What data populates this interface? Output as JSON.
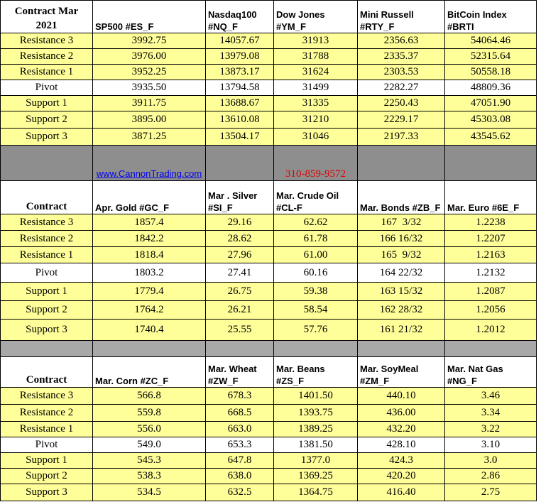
{
  "sections": [
    {
      "header": [
        "Contract  Mar\n2021",
        "SP500 #ES_F",
        "Nasdaq100\n#NQ_F",
        "Dow Jones\n#YM_F",
        "Mini Russell\n#RTY_F",
        "BitCoin Index\n#BRTI"
      ],
      "rows": [
        [
          "Resistance 3",
          "3992.75",
          "14057.67",
          "31913",
          "2356.63",
          "54064.46"
        ],
        [
          "Resistance 2",
          "3976.00",
          "13979.08",
          "31788",
          "2335.37",
          "52315.64"
        ],
        [
          "Resistance 1",
          "3952.25",
          "13873.17",
          "31624",
          "2303.53",
          "50558.18"
        ],
        [
          "Pivot",
          "3935.50",
          "13794.58",
          "31499",
          "2282.27",
          "48809.36"
        ],
        [
          "Support 1",
          "3911.75",
          "13688.67",
          "31335",
          "2250.43",
          "47051.90"
        ],
        [
          "Support 2",
          "3895.00",
          "13610.08",
          "31210",
          "2229.17",
          "45303.08"
        ],
        [
          "Support 3",
          "3871.25",
          "13504.17",
          "31046",
          "2197.33",
          "43545.62"
        ]
      ]
    },
    {
      "header": [
        "Contract",
        "Apr. Gold #GC_F",
        "Mar . Silver\n#SI_F",
        "Mar. Crude Oil\n#CL-F",
        "Mar. Bonds  #ZB_F",
        "Mar.  Euro #6E_F"
      ],
      "rows": [
        [
          "Resistance 3",
          "1857.4",
          "29.16",
          "62.62",
          "167  3/32",
          "1.2238"
        ],
        [
          "Resistance 2",
          "1842.2",
          "28.62",
          "61.78",
          "166 16/32",
          "1.2207"
        ],
        [
          "Resistance 1",
          "1818.4",
          "27.96",
          "61.00",
          "165  9/32",
          "1.2163"
        ],
        [
          "Pivot",
          "1803.2",
          "27.41",
          "60.16",
          "164 22/32",
          "1.2132"
        ],
        [
          "Support 1",
          "1779.4",
          "26.75",
          "59.38",
          "163 15/32",
          "1.2087"
        ],
        [
          "Support 2",
          "1764.2",
          "26.21",
          "58.54",
          "162 28/32",
          "1.2056"
        ],
        [
          "Support 3",
          "1740.4",
          "25.55",
          "57.76",
          "161 21/32",
          "1.2012"
        ]
      ]
    },
    {
      "header": [
        "Contract",
        "Mar. Corn #ZC_F",
        "Mar.  Wheat\n#ZW_F",
        "Mar.  Beans\n#ZS_F",
        "Mar. SoyMeal\n#ZM_F",
        "Mar. Nat Gas\n#NG_F"
      ],
      "rows": [
        [
          "Resistance 3",
          "566.8",
          "678.3",
          "1401.50",
          "440.10",
          "3.46"
        ],
        [
          "Resistance 2",
          "559.8",
          "668.5",
          "1393.75",
          "436.00",
          "3.34"
        ],
        [
          "Resistance 1",
          "556.0",
          "663.0",
          "1389.25",
          "432.20",
          "3.22"
        ],
        [
          "Pivot",
          "549.0",
          "653.3",
          "1381.50",
          "428.10",
          "3.10"
        ],
        [
          "Support 1",
          "545.3",
          "647.8",
          "1377.0",
          "424.3",
          "3.0"
        ],
        [
          "Support 2",
          "538.3",
          "638.0",
          "1369.25",
          "420.20",
          "2.86"
        ],
        [
          "Support 3",
          "534.5",
          "632.5",
          "1364.75",
          "416.40",
          "2.75"
        ]
      ]
    }
  ],
  "band": {
    "link": "www.CannonTrading.com",
    "phone": "310-859-9572"
  }
}
